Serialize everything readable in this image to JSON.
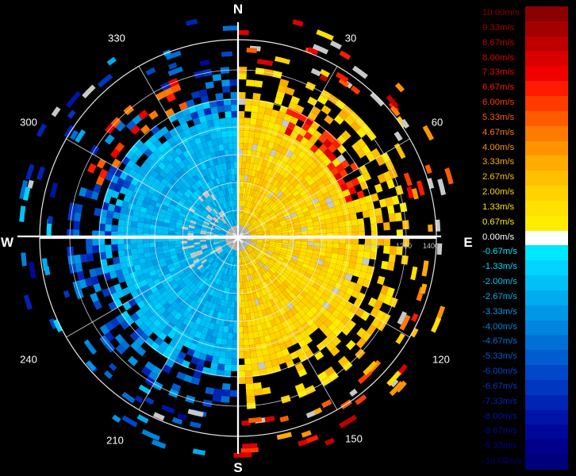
{
  "compass": {
    "north": "N",
    "south": "S",
    "east": "E",
    "west": "W"
  },
  "bearings": [
    "30",
    "60",
    "120",
    "150",
    "210",
    "240",
    "300",
    "330"
  ],
  "range_labels": [
    "400",
    "800",
    "1000",
    "1200",
    "1400"
  ],
  "legend": {
    "entries": [
      {
        "label": "10.00m/s",
        "color": "#8b0000"
      },
      {
        "label": "9.33m/s",
        "color": "#a50000"
      },
      {
        "label": "8.67m/s",
        "color": "#c00000"
      },
      {
        "label": "8.00m/s",
        "color": "#db0000"
      },
      {
        "label": "7.33m/s",
        "color": "#f00000"
      },
      {
        "label": "6.67m/s",
        "color": "#ff1a00"
      },
      {
        "label": "6.00m/s",
        "color": "#ff3b00"
      },
      {
        "label": "5.33m/s",
        "color": "#ff5c00"
      },
      {
        "label": "4.67m/s",
        "color": "#ff7a00"
      },
      {
        "label": "4.00m/s",
        "color": "#ff9400"
      },
      {
        "label": "3.33m/s",
        "color": "#ffab00"
      },
      {
        "label": "2.67m/s",
        "color": "#ffc000"
      },
      {
        "label": "2.00m/s",
        "color": "#ffd200"
      },
      {
        "label": "1.33m/s",
        "color": "#ffe000"
      },
      {
        "label": "0.67m/s",
        "color": "#ffec00"
      },
      {
        "label": "0.00m/s",
        "color": "#ffffff"
      },
      {
        "label": "-0.67m/s",
        "color": "#00e8ff"
      },
      {
        "label": "-1.33m/s",
        "color": "#00d4ff"
      },
      {
        "label": "-2.00m/s",
        "color": "#00c0f5"
      },
      {
        "label": "-2.67m/s",
        "color": "#00acee"
      },
      {
        "label": "-3.33m/s",
        "color": "#0098e6"
      },
      {
        "label": "-4.00m/s",
        "color": "#0084de"
      },
      {
        "label": "-4.67m/s",
        "color": "#0070d6"
      },
      {
        "label": "-5.33m/s",
        "color": "#005ccf"
      },
      {
        "label": "-6.00m/s",
        "color": "#0048c8"
      },
      {
        "label": "-6.67m/s",
        "color": "#0036c0"
      },
      {
        "label": "-7.33m/s",
        "color": "#0024b4"
      },
      {
        "label": "-8.00m/s",
        "color": "#0014a8"
      },
      {
        "label": "-8.67m/s",
        "color": "#00089a"
      },
      {
        "label": "-9.33m/s",
        "color": "#00008a"
      },
      {
        "label": "-10.00m/s",
        "color": "#00007a"
      }
    ]
  }
}
